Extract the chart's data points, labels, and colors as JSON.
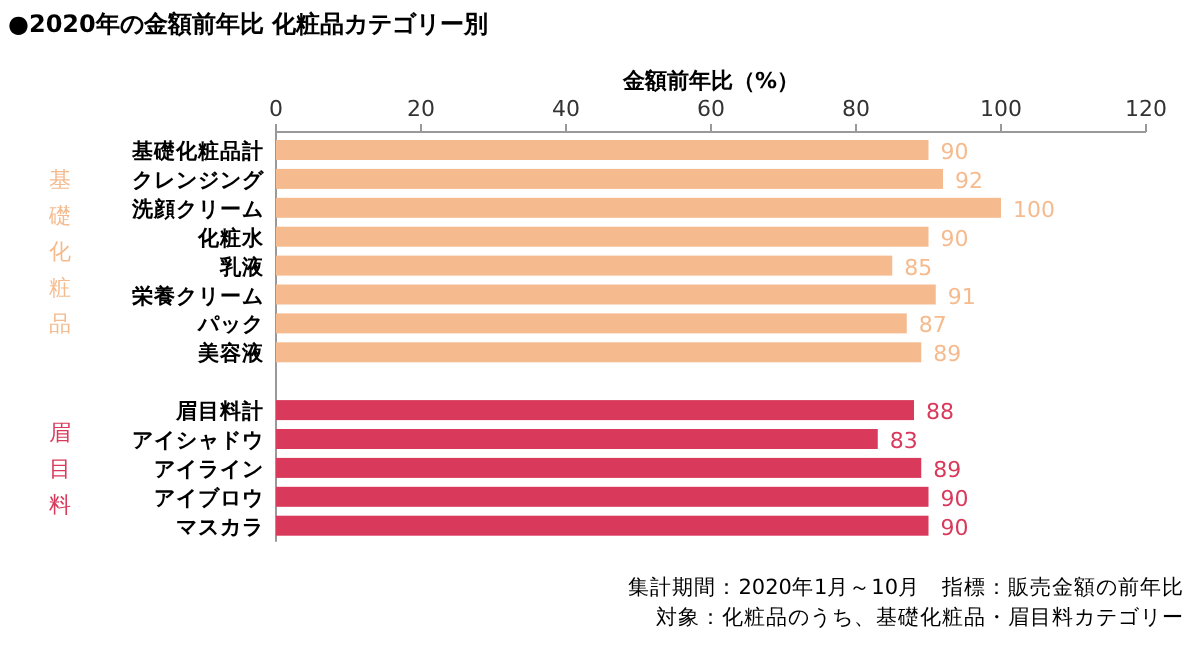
{
  "chart_data": {
    "type": "bar",
    "orientation": "horizontal",
    "title": "●2020年の金額前年比 化粧品カテゴリー別",
    "xlabel": "金額前年比（%）",
    "categories": [
      "基礎化粧品計",
      "クレンジング",
      "洗顔クリーム",
      "化粧水",
      "乳液",
      "栄養クリーム",
      "パック",
      "美容液",
      null,
      "眉目料計",
      "アイシャドウ",
      "アイライン",
      "アイブロウ",
      "マスカラ"
    ],
    "values": [
      90,
      92,
      100,
      90,
      85,
      91,
      87,
      89,
      null,
      88,
      83,
      89,
      90,
      90
    ],
    "colors": [
      "#f5bb8e",
      "#f5bb8e",
      "#f5bb8e",
      "#f5bb8e",
      "#f5bb8e",
      "#f5bb8e",
      "#f5bb8e",
      "#f5bb8e",
      null,
      "#d9395b",
      "#d9395b",
      "#d9395b",
      "#d9395b",
      "#d9395b"
    ],
    "xlim": [
      0,
      120
    ],
    "xticks": [
      0,
      20,
      40,
      60,
      80,
      100,
      120
    ],
    "data_labels": true,
    "grid": false,
    "annotations": [
      "基礎化粧品",
      "眉目料",
      "集計期間：2020年1月～10月　指標：販売金額の前年比",
      "対象：化粧品のうち、基礎化粧品・眉目料カテゴリー"
    ]
  }
}
